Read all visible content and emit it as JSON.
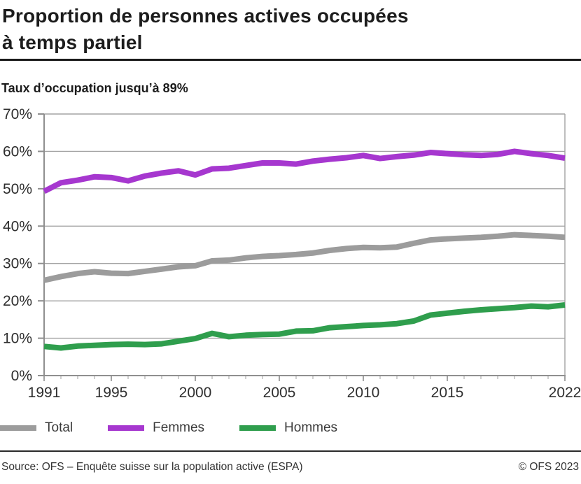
{
  "header": {
    "title_line1": "Proportion de personnes actives occupées",
    "title_line2": "à temps partiel",
    "subtitle": "Taux d’occupation jusqu’à 89%"
  },
  "chart_data": {
    "type": "line",
    "x": [
      1991,
      1992,
      1993,
      1994,
      1995,
      1996,
      1997,
      1998,
      1999,
      2000,
      2001,
      2002,
      2003,
      2004,
      2005,
      2006,
      2007,
      2008,
      2009,
      2010,
      2011,
      2012,
      2013,
      2014,
      2015,
      2016,
      2017,
      2018,
      2019,
      2020,
      2021,
      2022
    ],
    "x_tick_values": [
      1991,
      1995,
      2000,
      2005,
      2010,
      2015,
      2022
    ],
    "x_tick_labels": [
      "1991",
      "1995",
      "2000",
      "2005",
      "2010",
      "2015",
      "2022"
    ],
    "y_tick_values": [
      0,
      10,
      20,
      30,
      40,
      50,
      60,
      70
    ],
    "y_tick_labels": [
      "0%",
      "10%",
      "20%",
      "30%",
      "40%",
      "50%",
      "60%",
      "70%"
    ],
    "ylim": [
      0,
      70
    ],
    "grid": "horizontal",
    "legend_position": "bottom",
    "series": [
      {
        "name": "Total",
        "color": "#9c9c9c",
        "values": [
          25.5,
          26.5,
          27.3,
          27.8,
          27.4,
          27.3,
          27.9,
          28.5,
          29.1,
          29.4,
          30.7,
          30.9,
          31.5,
          31.9,
          32.1,
          32.4,
          32.8,
          33.5,
          34.0,
          34.3,
          34.2,
          34.4,
          35.4,
          36.3,
          36.6,
          36.8,
          37.0,
          37.3,
          37.7,
          37.5,
          37.3,
          37.0
        ]
      },
      {
        "name": "Femmes",
        "color": "#a637cf",
        "values": [
          49.3,
          51.6,
          52.3,
          53.2,
          53.0,
          52.1,
          53.4,
          54.2,
          54.8,
          53.7,
          55.3,
          55.5,
          56.2,
          56.9,
          56.9,
          56.6,
          57.4,
          57.9,
          58.3,
          58.9,
          58.1,
          58.6,
          59.0,
          59.7,
          59.4,
          59.1,
          58.9,
          59.2,
          60.0,
          59.4,
          58.9,
          58.2
        ]
      },
      {
        "name": "Hommes",
        "color": "#2f9e4d",
        "values": [
          7.8,
          7.4,
          7.9,
          8.1,
          8.3,
          8.4,
          8.3,
          8.5,
          9.2,
          9.9,
          11.3,
          10.4,
          10.8,
          11.0,
          11.1,
          11.9,
          12.0,
          12.8,
          13.1,
          13.4,
          13.6,
          13.9,
          14.6,
          16.2,
          16.7,
          17.2,
          17.6,
          17.9,
          18.2,
          18.6,
          18.4,
          18.9
        ]
      }
    ]
  },
  "footer": {
    "source": "Source: OFS – Enquête suisse sur la population active (ESPA)",
    "copyright": "© OFS 2023"
  }
}
